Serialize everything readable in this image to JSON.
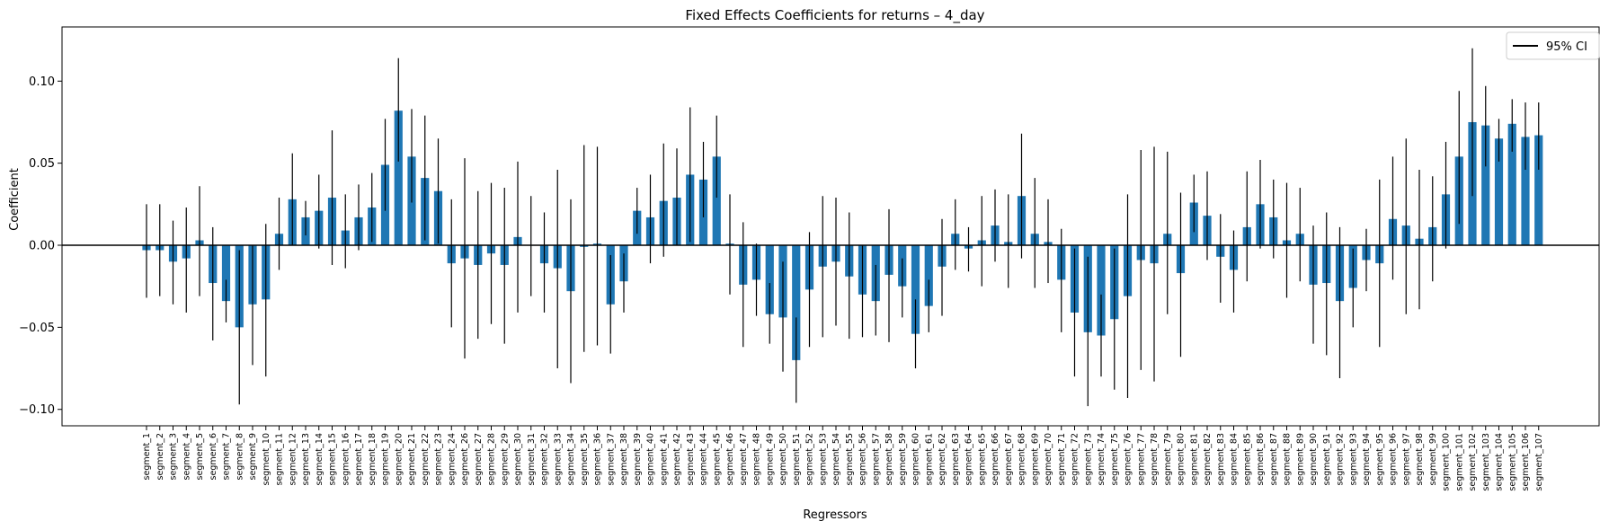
{
  "chart_data": {
    "type": "bar",
    "title": "Fixed Effects Coefficients for returns – 4_day",
    "xlabel": "Regressors",
    "ylabel": "Coefficient",
    "ylim": [
      -0.11,
      0.133
    ],
    "yticks": [
      -0.1,
      -0.05,
      0.0,
      0.05,
      0.1
    ],
    "ytick_labels": [
      "−0.10",
      "−0.05",
      "0.00",
      "0.05",
      "0.10"
    ],
    "legend": {
      "label": "95% CI",
      "placement": "top-right"
    },
    "grid": false,
    "bar_color": "#1f77b4",
    "errorbar_color": "#000000",
    "categories": [
      "segment_1",
      "segment_2",
      "segment_3",
      "segment_4",
      "segment_5",
      "segment_6",
      "segment_7",
      "segment_8",
      "segment_9",
      "segment_10",
      "segment_11",
      "segment_12",
      "segment_13",
      "segment_14",
      "segment_15",
      "segment_16",
      "segment_17",
      "segment_18",
      "segment_19",
      "segment_20",
      "segment_21",
      "segment_22",
      "segment_23",
      "segment_24",
      "segment_26",
      "segment_27",
      "segment_28",
      "segment_29",
      "segment_30",
      "segment_31",
      "segment_32",
      "segment_33",
      "segment_34",
      "segment_35",
      "segment_36",
      "segment_37",
      "segment_38",
      "segment_39",
      "segment_40",
      "segment_41",
      "segment_42",
      "segment_43",
      "segment_44",
      "segment_45",
      "segment_46",
      "segment_47",
      "segment_48",
      "segment_49",
      "segment_50",
      "segment_51",
      "segment_52",
      "segment_53",
      "segment_54",
      "segment_55",
      "segment_56",
      "segment_57",
      "segment_58",
      "segment_59",
      "segment_60",
      "segment_61",
      "segment_62",
      "segment_63",
      "segment_64",
      "segment_65",
      "segment_66",
      "segment_67",
      "segment_68",
      "segment_69",
      "segment_70",
      "segment_71",
      "segment_72",
      "segment_73",
      "segment_74",
      "segment_75",
      "segment_76",
      "segment_77",
      "segment_78",
      "segment_79",
      "segment_80",
      "segment_81",
      "segment_82",
      "segment_83",
      "segment_84",
      "segment_85",
      "segment_86",
      "segment_87",
      "segment_88",
      "segment_89",
      "segment_90",
      "segment_91",
      "segment_92",
      "segment_93",
      "segment_94",
      "segment_95",
      "segment_96",
      "segment_97",
      "segment_98",
      "segment_99",
      "segment_100",
      "segment_101",
      "segment_102",
      "segment_103",
      "segment_104",
      "segment_105",
      "segment_106",
      "segment_107"
    ],
    "values": [
      -0.003,
      -0.003,
      -0.01,
      -0.008,
      0.003,
      -0.023,
      -0.034,
      -0.05,
      -0.036,
      -0.033,
      0.007,
      0.028,
      0.017,
      0.021,
      0.029,
      0.009,
      0.017,
      0.023,
      0.049,
      0.082,
      0.054,
      0.041,
      0.033,
      -0.011,
      -0.008,
      -0.012,
      -0.005,
      -0.012,
      0.005,
      0.0,
      -0.011,
      -0.014,
      -0.028,
      -0.001,
      0.001,
      -0.036,
      -0.022,
      0.021,
      0.017,
      0.027,
      0.029,
      0.043,
      0.04,
      0.054,
      0.001,
      -0.024,
      -0.021,
      -0.042,
      -0.044,
      -0.07,
      -0.027,
      -0.013,
      -0.01,
      -0.019,
      -0.03,
      -0.034,
      -0.018,
      -0.025,
      -0.054,
      -0.037,
      -0.013,
      0.007,
      -0.002,
      0.003,
      0.012,
      0.002,
      0.03,
      0.007,
      0.002,
      -0.021,
      -0.041,
      -0.053,
      -0.055,
      -0.045,
      -0.031,
      -0.009,
      -0.011,
      0.007,
      -0.017,
      0.026,
      0.018,
      -0.007,
      -0.015,
      0.011,
      0.025,
      0.017,
      0.003,
      0.007,
      -0.024,
      -0.023,
      -0.034,
      -0.026,
      -0.009,
      -0.011,
      0.016,
      0.012,
      0.004,
      0.011,
      0.031,
      0.054,
      0.075,
      0.073,
      0.065,
      0.074,
      0.066,
      0.067
    ],
    "ci_low": [
      -0.032,
      -0.031,
      -0.036,
      -0.041,
      -0.031,
      -0.058,
      -0.047,
      -0.097,
      -0.073,
      -0.08,
      -0.015,
      0.0,
      0.006,
      -0.002,
      -0.012,
      -0.014,
      -0.003,
      0.002,
      0.021,
      0.051,
      0.026,
      0.003,
      0.001,
      -0.05,
      -0.069,
      -0.057,
      -0.048,
      -0.06,
      -0.041,
      -0.031,
      -0.041,
      -0.075,
      -0.084,
      -0.065,
      -0.061,
      -0.066,
      -0.041,
      0.007,
      -0.011,
      -0.007,
      0.0,
      0.002,
      0.017,
      0.029,
      -0.03,
      -0.062,
      -0.043,
      -0.06,
      -0.077,
      -0.096,
      -0.062,
      -0.056,
      -0.049,
      -0.057,
      -0.056,
      -0.055,
      -0.059,
      -0.044,
      -0.075,
      -0.053,
      -0.043,
      -0.015,
      -0.016,
      -0.025,
      -0.01,
      -0.026,
      -0.008,
      -0.026,
      -0.023,
      -0.053,
      -0.08,
      -0.098,
      -0.08,
      -0.088,
      -0.093,
      -0.076,
      -0.083,
      -0.042,
      -0.068,
      0.008,
      -0.009,
      -0.035,
      -0.041,
      -0.022,
      -0.002,
      -0.008,
      -0.032,
      -0.022,
      -0.06,
      -0.067,
      -0.081,
      -0.05,
      -0.028,
      -0.062,
      -0.021,
      -0.042,
      -0.039,
      -0.022,
      -0.002,
      0.013,
      0.03,
      0.048,
      0.051,
      0.057,
      0.046,
      0.046
    ],
    "ci_high": [
      0.025,
      0.025,
      0.015,
      0.023,
      0.036,
      0.011,
      -0.021,
      -0.003,
      0.0,
      0.013,
      0.029,
      0.056,
      0.027,
      0.043,
      0.07,
      0.031,
      0.037,
      0.044,
      0.077,
      0.114,
      0.083,
      0.079,
      0.065,
      0.028,
      0.053,
      0.033,
      0.038,
      0.035,
      0.051,
      0.03,
      0.02,
      0.046,
      0.028,
      0.061,
      0.06,
      -0.006,
      -0.005,
      0.035,
      0.043,
      0.062,
      0.059,
      0.084,
      0.063,
      0.079,
      0.031,
      0.014,
      0.001,
      -0.023,
      -0.01,
      -0.044,
      0.008,
      0.03,
      0.029,
      0.02,
      0.0,
      -0.012,
      0.022,
      -0.008,
      -0.033,
      -0.021,
      0.016,
      0.028,
      0.011,
      0.03,
      0.034,
      0.031,
      0.068,
      0.041,
      0.028,
      0.01,
      -0.002,
      -0.007,
      -0.03,
      -0.002,
      0.031,
      0.058,
      0.06,
      0.057,
      0.032,
      0.043,
      0.045,
      0.019,
      0.009,
      0.045,
      0.052,
      0.04,
      0.038,
      0.035,
      0.012,
      0.02,
      0.011,
      -0.002,
      0.01,
      0.04,
      0.054,
      0.065,
      0.046,
      0.042,
      0.063,
      0.094,
      0.12,
      0.097,
      0.077,
      0.089,
      0.087,
      0.087
    ]
  }
}
